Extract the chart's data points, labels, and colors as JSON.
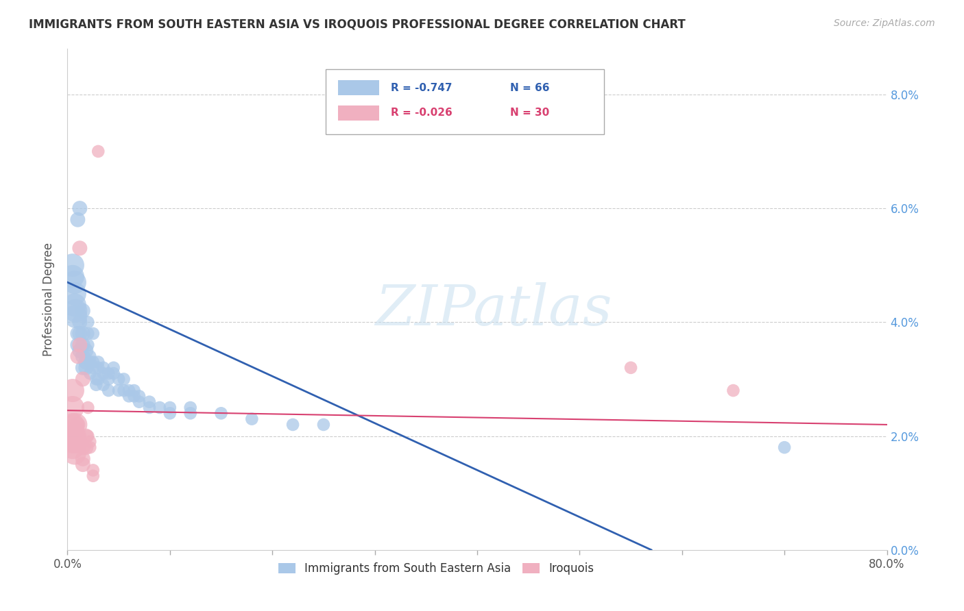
{
  "title": "IMMIGRANTS FROM SOUTH EASTERN ASIA VS IROQUOIS PROFESSIONAL DEGREE CORRELATION CHART",
  "source": "Source: ZipAtlas.com",
  "ylabel": "Professional Degree",
  "legend_label_blue": "Immigrants from South Eastern Asia",
  "legend_label_pink": "Iroquois",
  "legend_r_blue": "R = -0.747",
  "legend_n_blue": "N = 66",
  "legend_r_pink": "R = -0.026",
  "legend_n_pink": "N = 30",
  "xlim": [
    0.0,
    0.8
  ],
  "ylim": [
    0.0,
    0.088
  ],
  "xtick_positions": [
    0.0,
    0.1,
    0.2,
    0.3,
    0.4,
    0.5,
    0.6,
    0.7,
    0.8
  ],
  "xtick_labels_show": [
    "0.0%",
    "",
    "",
    "",
    "",
    "",
    "",
    "",
    "80.0%"
  ],
  "yticks": [
    0.0,
    0.02,
    0.04,
    0.06,
    0.08
  ],
  "watermark": "ZIPatlas",
  "blue_color": "#aac8e8",
  "pink_color": "#f0b0c0",
  "blue_line_color": "#3060b0",
  "pink_line_color": "#d84070",
  "blue_dots": [
    [
      0.005,
      0.05
    ],
    [
      0.005,
      0.048
    ],
    [
      0.007,
      0.047
    ],
    [
      0.007,
      0.045
    ],
    [
      0.007,
      0.043
    ],
    [
      0.008,
      0.042
    ],
    [
      0.008,
      0.041
    ],
    [
      0.01,
      0.058
    ],
    [
      0.012,
      0.06
    ],
    [
      0.01,
      0.038
    ],
    [
      0.01,
      0.036
    ],
    [
      0.012,
      0.04
    ],
    [
      0.012,
      0.038
    ],
    [
      0.012,
      0.035
    ],
    [
      0.015,
      0.042
    ],
    [
      0.015,
      0.038
    ],
    [
      0.015,
      0.036
    ],
    [
      0.015,
      0.034
    ],
    [
      0.015,
      0.032
    ],
    [
      0.018,
      0.035
    ],
    [
      0.018,
      0.033
    ],
    [
      0.018,
      0.032
    ],
    [
      0.02,
      0.04
    ],
    [
      0.02,
      0.038
    ],
    [
      0.02,
      0.036
    ],
    [
      0.022,
      0.034
    ],
    [
      0.022,
      0.033
    ],
    [
      0.022,
      0.031
    ],
    [
      0.025,
      0.038
    ],
    [
      0.025,
      0.033
    ],
    [
      0.025,
      0.032
    ],
    [
      0.028,
      0.03
    ],
    [
      0.028,
      0.029
    ],
    [
      0.03,
      0.033
    ],
    [
      0.03,
      0.032
    ],
    [
      0.03,
      0.03
    ],
    [
      0.035,
      0.032
    ],
    [
      0.035,
      0.031
    ],
    [
      0.035,
      0.029
    ],
    [
      0.04,
      0.031
    ],
    [
      0.04,
      0.03
    ],
    [
      0.04,
      0.028
    ],
    [
      0.045,
      0.032
    ],
    [
      0.045,
      0.031
    ],
    [
      0.05,
      0.03
    ],
    [
      0.05,
      0.028
    ],
    [
      0.055,
      0.03
    ],
    [
      0.055,
      0.028
    ],
    [
      0.06,
      0.028
    ],
    [
      0.06,
      0.027
    ],
    [
      0.065,
      0.028
    ],
    [
      0.065,
      0.027
    ],
    [
      0.07,
      0.027
    ],
    [
      0.07,
      0.026
    ],
    [
      0.08,
      0.026
    ],
    [
      0.08,
      0.025
    ],
    [
      0.09,
      0.025
    ],
    [
      0.1,
      0.025
    ],
    [
      0.1,
      0.024
    ],
    [
      0.12,
      0.025
    ],
    [
      0.12,
      0.024
    ],
    [
      0.15,
      0.024
    ],
    [
      0.18,
      0.023
    ],
    [
      0.22,
      0.022
    ],
    [
      0.25,
      0.022
    ],
    [
      0.7,
      0.018
    ]
  ],
  "pink_dots": [
    [
      0.005,
      0.028
    ],
    [
      0.005,
      0.025
    ],
    [
      0.005,
      0.022
    ],
    [
      0.005,
      0.021
    ],
    [
      0.005,
      0.019
    ],
    [
      0.005,
      0.018
    ],
    [
      0.007,
      0.02
    ],
    [
      0.007,
      0.017
    ],
    [
      0.008,
      0.022
    ],
    [
      0.008,
      0.019
    ],
    [
      0.01,
      0.034
    ],
    [
      0.01,
      0.022
    ],
    [
      0.01,
      0.02
    ],
    [
      0.012,
      0.053
    ],
    [
      0.012,
      0.036
    ],
    [
      0.015,
      0.03
    ],
    [
      0.015,
      0.018
    ],
    [
      0.015,
      0.016
    ],
    [
      0.015,
      0.015
    ],
    [
      0.018,
      0.02
    ],
    [
      0.018,
      0.018
    ],
    [
      0.02,
      0.025
    ],
    [
      0.02,
      0.02
    ],
    [
      0.022,
      0.019
    ],
    [
      0.022,
      0.018
    ],
    [
      0.025,
      0.014
    ],
    [
      0.025,
      0.013
    ],
    [
      0.03,
      0.07
    ],
    [
      0.55,
      0.032
    ],
    [
      0.65,
      0.028
    ]
  ],
  "blue_trendline_x": [
    0.0,
    0.57
  ],
  "blue_trendline_y": [
    0.047,
    0.0
  ],
  "pink_trendline_x": [
    0.0,
    0.8
  ],
  "pink_trendline_y": [
    0.0245,
    0.022
  ]
}
